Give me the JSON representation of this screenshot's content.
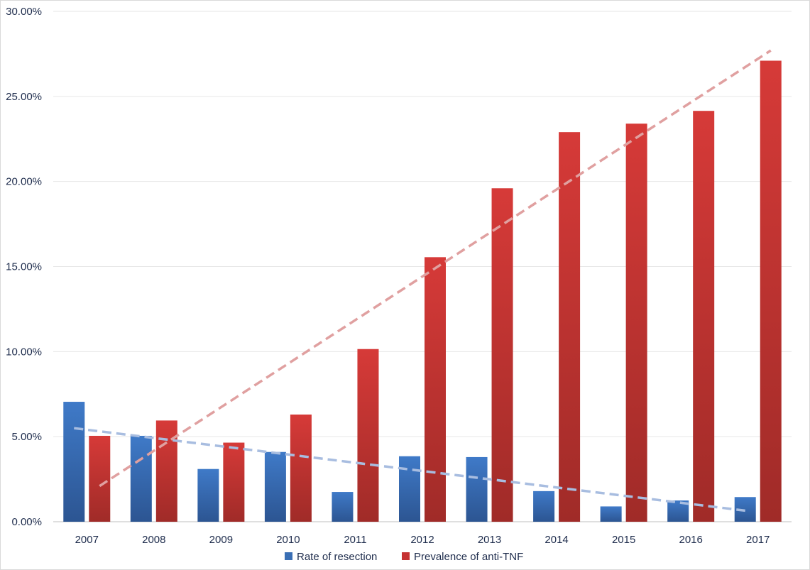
{
  "chart_data": {
    "type": "bar",
    "title": "",
    "xlabel": "",
    "ylabel": "",
    "categories": [
      "2007",
      "2008",
      "2009",
      "2010",
      "2011",
      "2012",
      "2013",
      "2014",
      "2015",
      "2016",
      "2017"
    ],
    "series": [
      {
        "name": "Rate of resection",
        "color": "#3a6fb5",
        "values": [
          7.05,
          5.05,
          3.1,
          4.1,
          1.75,
          3.85,
          3.8,
          1.8,
          0.9,
          1.25,
          1.45
        ]
      },
      {
        "name": "Prevalence of anti-TNF",
        "color": "#c53131",
        "values": [
          5.05,
          5.95,
          4.65,
          6.3,
          10.15,
          15.55,
          19.6,
          22.9,
          23.4,
          24.15,
          27.1
        ]
      }
    ],
    "trendlines": [
      {
        "series": "Rate of resection",
        "type": "linear",
        "color": "#a8bde0",
        "dashed": true,
        "start": 5.5,
        "end": 0.65
      },
      {
        "series": "Prevalence of anti-TNF",
        "type": "linear",
        "color": "#e0a0a0",
        "dashed": true,
        "start": 2.1,
        "end": 27.7
      }
    ],
    "ylim": [
      0,
      30
    ],
    "yticks": [
      "0.00%",
      "5.00%",
      "10.00%",
      "15.00%",
      "20.00%",
      "25.00%",
      "30.00%"
    ],
    "ytick_values": [
      0,
      5,
      10,
      15,
      20,
      25,
      30
    ],
    "grid": true,
    "legend_position": "bottom"
  }
}
